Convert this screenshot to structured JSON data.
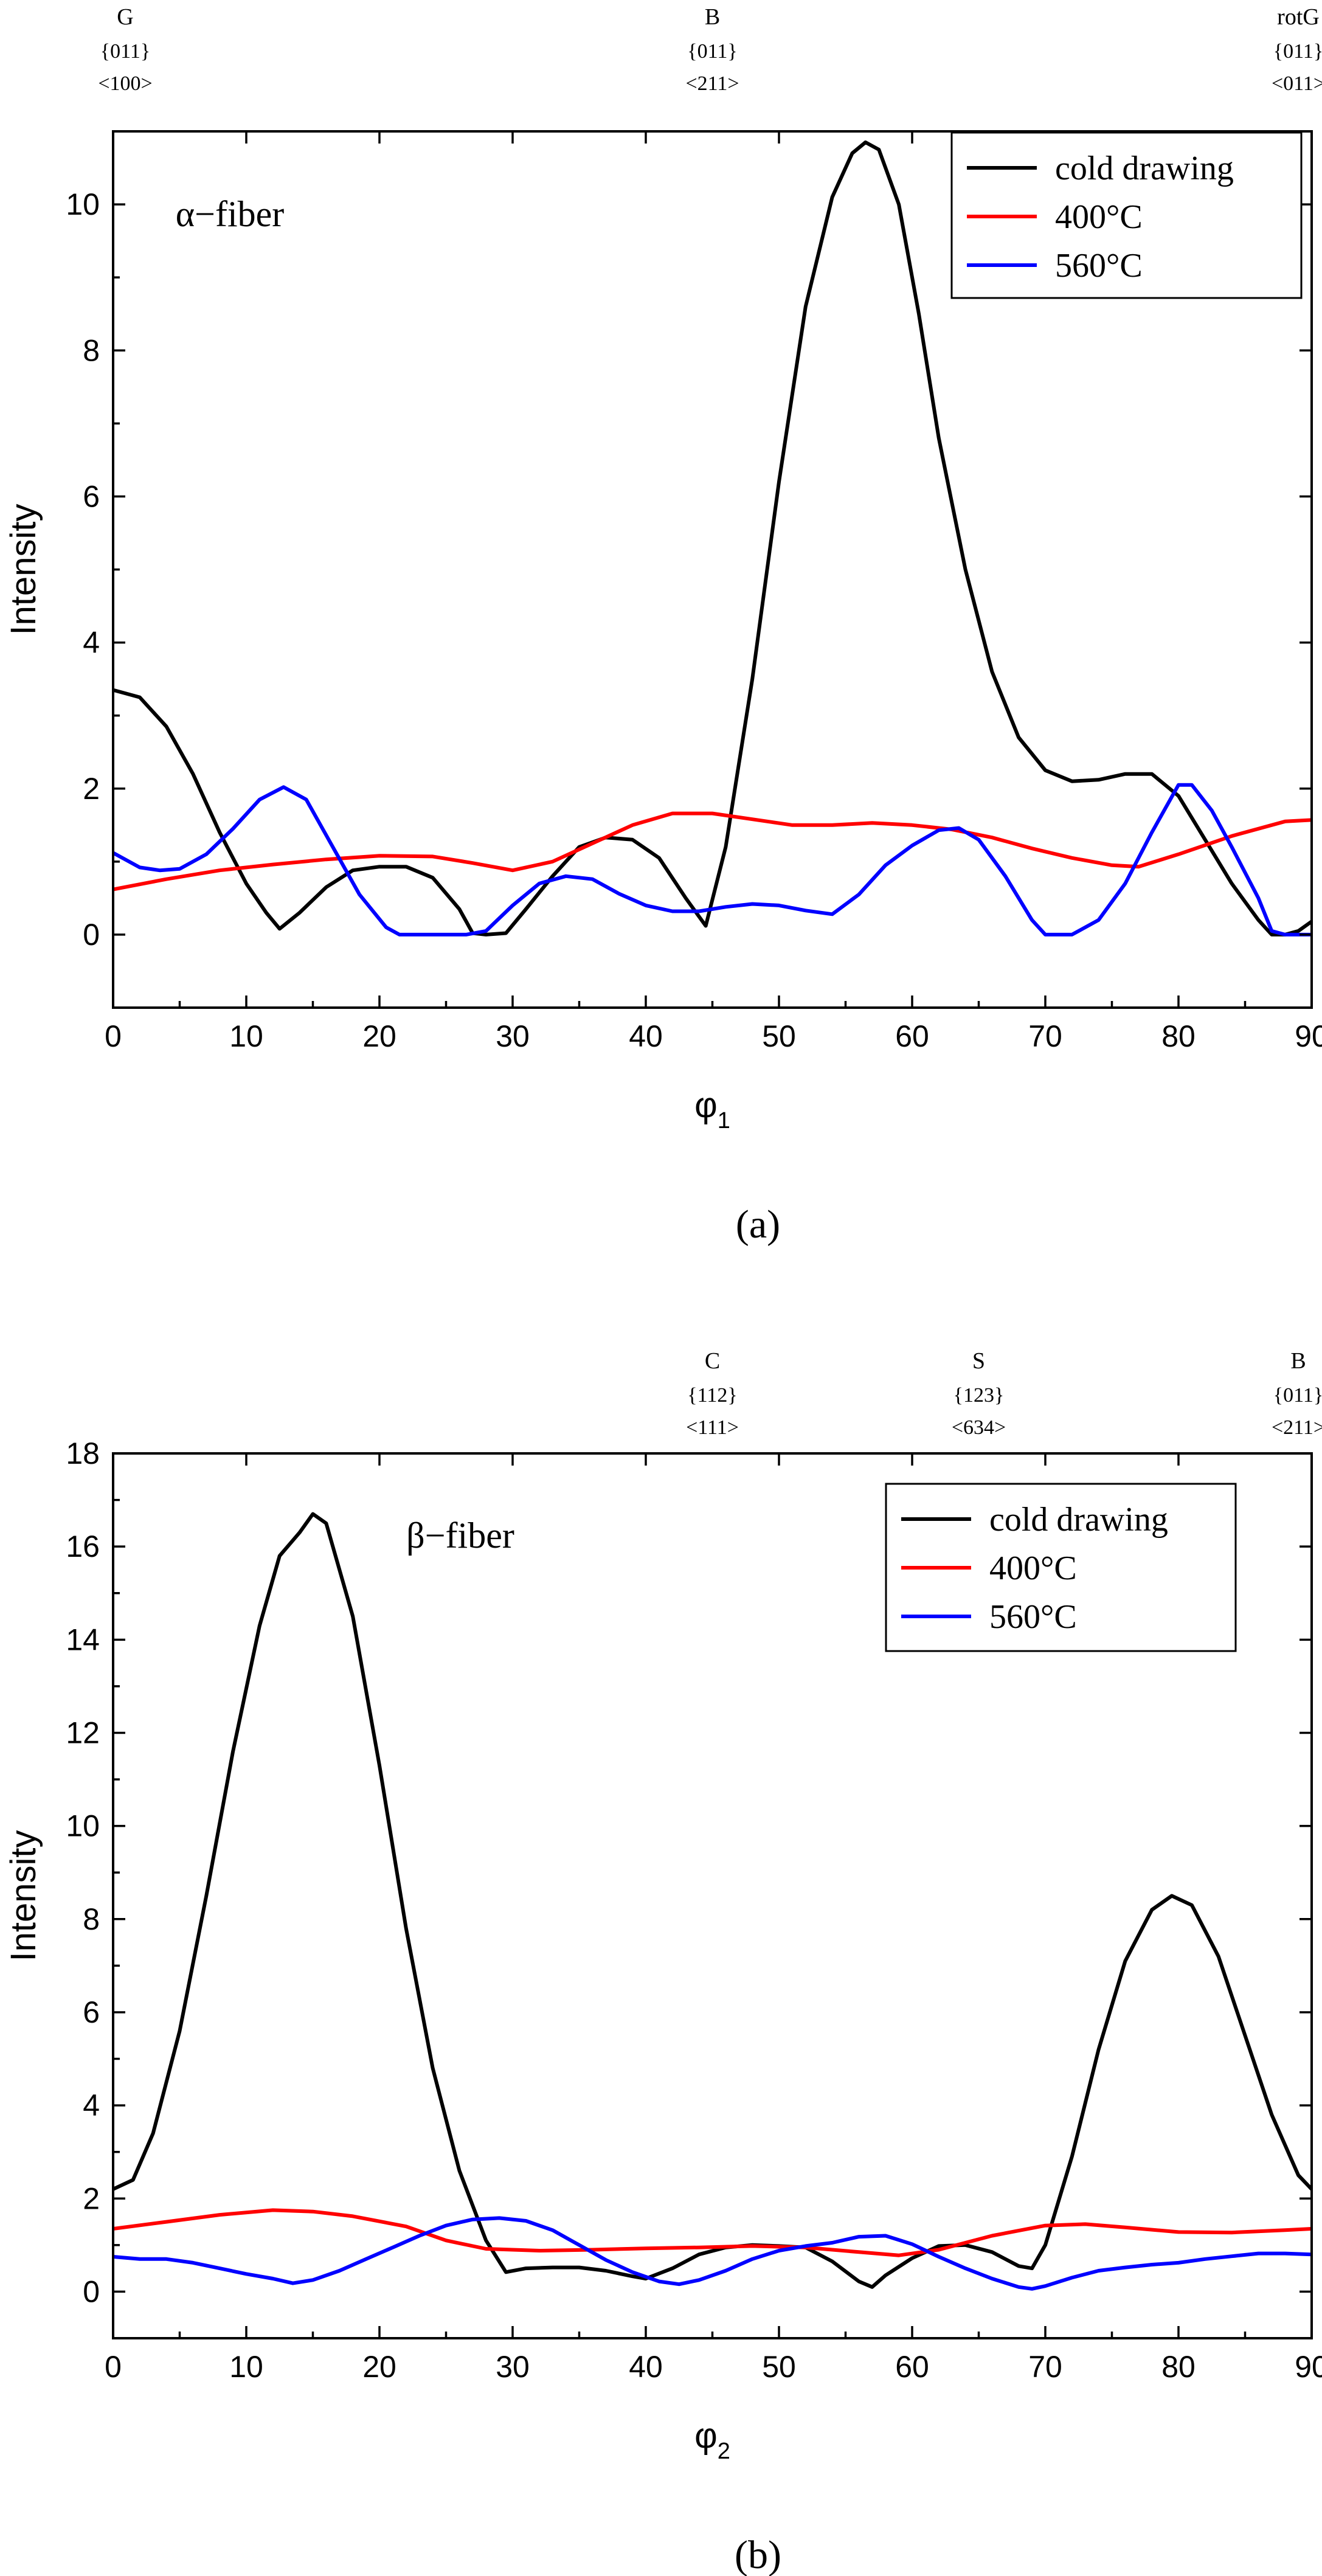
{
  "chart_data": [
    {
      "type": "line",
      "panel_label": "(a)",
      "panel_letter": "a",
      "fiber_label": "α−fiber",
      "xlabel": "φ",
      "xlabel_sub": "1",
      "ylabel": "Intensity",
      "xlim": [
        0,
        90
      ],
      "ylim": [
        -1,
        11
      ],
      "xticks": [
        0,
        10,
        20,
        30,
        40,
        50,
        60,
        70,
        80,
        90
      ],
      "yticks": [
        0,
        2,
        4,
        6,
        8,
        10
      ],
      "legend_position": "top-right",
      "annotations": [
        {
          "x": 0,
          "name": "G",
          "plane": "{011}",
          "direction": "<100>"
        },
        {
          "x": 45,
          "name": "B",
          "plane": "{011}",
          "direction": "<211>"
        },
        {
          "x": 90,
          "name": "rotG",
          "plane": "{011}",
          "direction": "<011>"
        }
      ],
      "series": [
        {
          "name": "cold drawing",
          "color": "#000000",
          "points": [
            [
              0,
              3.35
            ],
            [
              2,
              3.25
            ],
            [
              4,
              2.85
            ],
            [
              6,
              2.2
            ],
            [
              8,
              1.4
            ],
            [
              10,
              0.7
            ],
            [
              11.5,
              0.3
            ],
            [
              12.5,
              0.08
            ],
            [
              14,
              0.3
            ],
            [
              16,
              0.65
            ],
            [
              18,
              0.88
            ],
            [
              20,
              0.93
            ],
            [
              22,
              0.93
            ],
            [
              24,
              0.78
            ],
            [
              26,
              0.35
            ],
            [
              27,
              0.02
            ],
            [
              28,
              0.0
            ],
            [
              29.5,
              0.02
            ],
            [
              31,
              0.35
            ],
            [
              33,
              0.8
            ],
            [
              35,
              1.2
            ],
            [
              37,
              1.33
            ],
            [
              39,
              1.3
            ],
            [
              41,
              1.05
            ],
            [
              43,
              0.5
            ],
            [
              44.5,
              0.12
            ],
            [
              46,
              1.2
            ],
            [
              48,
              3.5
            ],
            [
              50,
              6.2
            ],
            [
              52,
              8.6
            ],
            [
              54,
              10.1
            ],
            [
              55.5,
              10.7
            ],
            [
              56.5,
              10.85
            ],
            [
              57.5,
              10.75
            ],
            [
              59,
              10.0
            ],
            [
              60.5,
              8.5
            ],
            [
              62,
              6.8
            ],
            [
              64,
              5.0
            ],
            [
              66,
              3.6
            ],
            [
              68,
              2.7
            ],
            [
              70,
              2.25
            ],
            [
              72,
              2.1
            ],
            [
              74,
              2.12
            ],
            [
              76,
              2.2
            ],
            [
              78,
              2.2
            ],
            [
              80,
              1.9
            ],
            [
              82,
              1.3
            ],
            [
              84,
              0.7
            ],
            [
              86,
              0.2
            ],
            [
              87,
              0.0
            ],
            [
              88,
              0.0
            ],
            [
              89,
              0.05
            ],
            [
              90,
              0.18
            ]
          ]
        },
        {
          "name": "400°C",
          "color": "#ff0000",
          "points": [
            [
              0,
              0.62
            ],
            [
              4,
              0.76
            ],
            [
              8,
              0.88
            ],
            [
              12,
              0.96
            ],
            [
              16,
              1.03
            ],
            [
              20,
              1.08
            ],
            [
              24,
              1.07
            ],
            [
              27,
              0.98
            ],
            [
              30,
              0.88
            ],
            [
              33,
              1.0
            ],
            [
              36,
              1.25
            ],
            [
              39,
              1.5
            ],
            [
              42,
              1.66
            ],
            [
              45,
              1.66
            ],
            [
              48,
              1.58
            ],
            [
              51,
              1.5
            ],
            [
              54,
              1.5
            ],
            [
              57,
              1.53
            ],
            [
              60,
              1.5
            ],
            [
              63,
              1.44
            ],
            [
              66,
              1.33
            ],
            [
              69,
              1.18
            ],
            [
              72,
              1.05
            ],
            [
              75,
              0.95
            ],
            [
              77,
              0.93
            ],
            [
              80,
              1.1
            ],
            [
              84,
              1.35
            ],
            [
              88,
              1.55
            ],
            [
              90,
              1.57
            ]
          ]
        },
        {
          "name": "560°C",
          "color": "#0000ff",
          "points": [
            [
              0,
              1.12
            ],
            [
              2,
              0.92
            ],
            [
              3.5,
              0.88
            ],
            [
              5,
              0.9
            ],
            [
              7,
              1.1
            ],
            [
              9,
              1.45
            ],
            [
              11,
              1.85
            ],
            [
              12.8,
              2.02
            ],
            [
              14.5,
              1.85
            ],
            [
              16.5,
              1.2
            ],
            [
              18.5,
              0.55
            ],
            [
              20.5,
              0.1
            ],
            [
              21.5,
              0.0
            ],
            [
              24,
              0.0
            ],
            [
              26.5,
              0.0
            ],
            [
              28,
              0.05
            ],
            [
              30,
              0.4
            ],
            [
              32,
              0.7
            ],
            [
              34,
              0.8
            ],
            [
              36,
              0.76
            ],
            [
              38,
              0.56
            ],
            [
              40,
              0.4
            ],
            [
              42,
              0.32
            ],
            [
              44,
              0.32
            ],
            [
              46,
              0.38
            ],
            [
              48,
              0.42
            ],
            [
              50,
              0.4
            ],
            [
              52,
              0.33
            ],
            [
              54,
              0.28
            ],
            [
              56,
              0.55
            ],
            [
              58,
              0.95
            ],
            [
              60,
              1.22
            ],
            [
              62,
              1.43
            ],
            [
              63.5,
              1.46
            ],
            [
              65,
              1.3
            ],
            [
              67,
              0.8
            ],
            [
              69,
              0.2
            ],
            [
              70,
              0.0
            ],
            [
              72,
              0.0
            ],
            [
              74,
              0.2
            ],
            [
              76,
              0.7
            ],
            [
              78,
              1.4
            ],
            [
              80,
              2.05
            ],
            [
              81,
              2.05
            ],
            [
              82.5,
              1.7
            ],
            [
              84,
              1.2
            ],
            [
              86,
              0.5
            ],
            [
              87,
              0.05
            ],
            [
              88,
              0.0
            ],
            [
              89,
              0.0
            ],
            [
              90,
              0.0
            ]
          ]
        }
      ]
    },
    {
      "type": "line",
      "panel_label": "(b)",
      "panel_letter": "b",
      "fiber_label": "β−fiber",
      "xlabel": "φ",
      "xlabel_sub": "2",
      "ylabel": "Intensity",
      "xlim": [
        0,
        90
      ],
      "ylim": [
        -1,
        18
      ],
      "xticks": [
        0,
        10,
        20,
        30,
        40,
        50,
        60,
        70,
        80,
        90
      ],
      "yticks": [
        0,
        2,
        4,
        6,
        8,
        10,
        12,
        14,
        16,
        18
      ],
      "legend_position": "top-right",
      "annotations": [
        {
          "x": 45,
          "name": "C",
          "plane": "{112}",
          "direction": "<111>"
        },
        {
          "x": 65,
          "name": "S",
          "plane": "{123}",
          "direction": "<634>"
        },
        {
          "x": 90,
          "name": "B",
          "plane": "{011}",
          "direction": "<211>"
        }
      ],
      "series": [
        {
          "name": "cold drawing",
          "color": "#000000",
          "points": [
            [
              0,
              2.2
            ],
            [
              1.5,
              2.4
            ],
            [
              3,
              3.4
            ],
            [
              5,
              5.6
            ],
            [
              7,
              8.5
            ],
            [
              9,
              11.6
            ],
            [
              11,
              14.3
            ],
            [
              12.5,
              15.8
            ],
            [
              14,
              16.3
            ],
            [
              15,
              16.7
            ],
            [
              16,
              16.5
            ],
            [
              18,
              14.5
            ],
            [
              20,
              11.3
            ],
            [
              22,
              7.8
            ],
            [
              24,
              4.8
            ],
            [
              26,
              2.6
            ],
            [
              28,
              1.1
            ],
            [
              29.5,
              0.42
            ],
            [
              31,
              0.5
            ],
            [
              33,
              0.52
            ],
            [
              35,
              0.52
            ],
            [
              37,
              0.45
            ],
            [
              39,
              0.33
            ],
            [
              40,
              0.28
            ],
            [
              42,
              0.5
            ],
            [
              44,
              0.8
            ],
            [
              46,
              0.95
            ],
            [
              48,
              1.0
            ],
            [
              50,
              0.98
            ],
            [
              52,
              0.95
            ],
            [
              54,
              0.65
            ],
            [
              56,
              0.22
            ],
            [
              57,
              0.1
            ],
            [
              58,
              0.35
            ],
            [
              60,
              0.72
            ],
            [
              62,
              0.98
            ],
            [
              64,
              1.0
            ],
            [
              66,
              0.85
            ],
            [
              68,
              0.55
            ],
            [
              69,
              0.5
            ],
            [
              70,
              1.0
            ],
            [
              72,
              2.9
            ],
            [
              74,
              5.2
            ],
            [
              76,
              7.1
            ],
            [
              78,
              8.2
            ],
            [
              79.5,
              8.5
            ],
            [
              81,
              8.3
            ],
            [
              83,
              7.2
            ],
            [
              85,
              5.5
            ],
            [
              87,
              3.8
            ],
            [
              89,
              2.5
            ],
            [
              90,
              2.2
            ]
          ]
        },
        {
          "name": "400°C",
          "color": "#ff0000",
          "points": [
            [
              0,
              1.35
            ],
            [
              4,
              1.5
            ],
            [
              8,
              1.65
            ],
            [
              12,
              1.75
            ],
            [
              15,
              1.72
            ],
            [
              18,
              1.62
            ],
            [
              22,
              1.4
            ],
            [
              25,
              1.1
            ],
            [
              28,
              0.92
            ],
            [
              32,
              0.88
            ],
            [
              36,
              0.9
            ],
            [
              40,
              0.93
            ],
            [
              44,
              0.95
            ],
            [
              48,
              0.98
            ],
            [
              52,
              0.95
            ],
            [
              56,
              0.85
            ],
            [
              59,
              0.78
            ],
            [
              62,
              0.9
            ],
            [
              66,
              1.2
            ],
            [
              70,
              1.42
            ],
            [
              73,
              1.45
            ],
            [
              76,
              1.38
            ],
            [
              80,
              1.28
            ],
            [
              84,
              1.27
            ],
            [
              88,
              1.32
            ],
            [
              90,
              1.35
            ]
          ]
        },
        {
          "name": "560°C",
          "color": "#0000ff",
          "points": [
            [
              0,
              0.75
            ],
            [
              2,
              0.7
            ],
            [
              4,
              0.7
            ],
            [
              6,
              0.62
            ],
            [
              8,
              0.5
            ],
            [
              10,
              0.38
            ],
            [
              12,
              0.28
            ],
            [
              13.5,
              0.18
            ],
            [
              15,
              0.25
            ],
            [
              17,
              0.45
            ],
            [
              19,
              0.7
            ],
            [
              21,
              0.95
            ],
            [
              23,
              1.2
            ],
            [
              25,
              1.42
            ],
            [
              27,
              1.55
            ],
            [
              29,
              1.58
            ],
            [
              31,
              1.52
            ],
            [
              33,
              1.32
            ],
            [
              35,
              1.0
            ],
            [
              37,
              0.68
            ],
            [
              39,
              0.42
            ],
            [
              41,
              0.22
            ],
            [
              42.5,
              0.16
            ],
            [
              44,
              0.25
            ],
            [
              46,
              0.45
            ],
            [
              48,
              0.7
            ],
            [
              50,
              0.88
            ],
            [
              52,
              0.98
            ],
            [
              54,
              1.05
            ],
            [
              56,
              1.18
            ],
            [
              58,
              1.2
            ],
            [
              60,
              1.02
            ],
            [
              62,
              0.75
            ],
            [
              64,
              0.5
            ],
            [
              66,
              0.28
            ],
            [
              68,
              0.1
            ],
            [
              69,
              0.06
            ],
            [
              70,
              0.12
            ],
            [
              72,
              0.3
            ],
            [
              74,
              0.45
            ],
            [
              76,
              0.52
            ],
            [
              78,
              0.58
            ],
            [
              80,
              0.62
            ],
            [
              82,
              0.7
            ],
            [
              84,
              0.76
            ],
            [
              86,
              0.82
            ],
            [
              88,
              0.82
            ],
            [
              90,
              0.8
            ]
          ]
        }
      ]
    }
  ]
}
